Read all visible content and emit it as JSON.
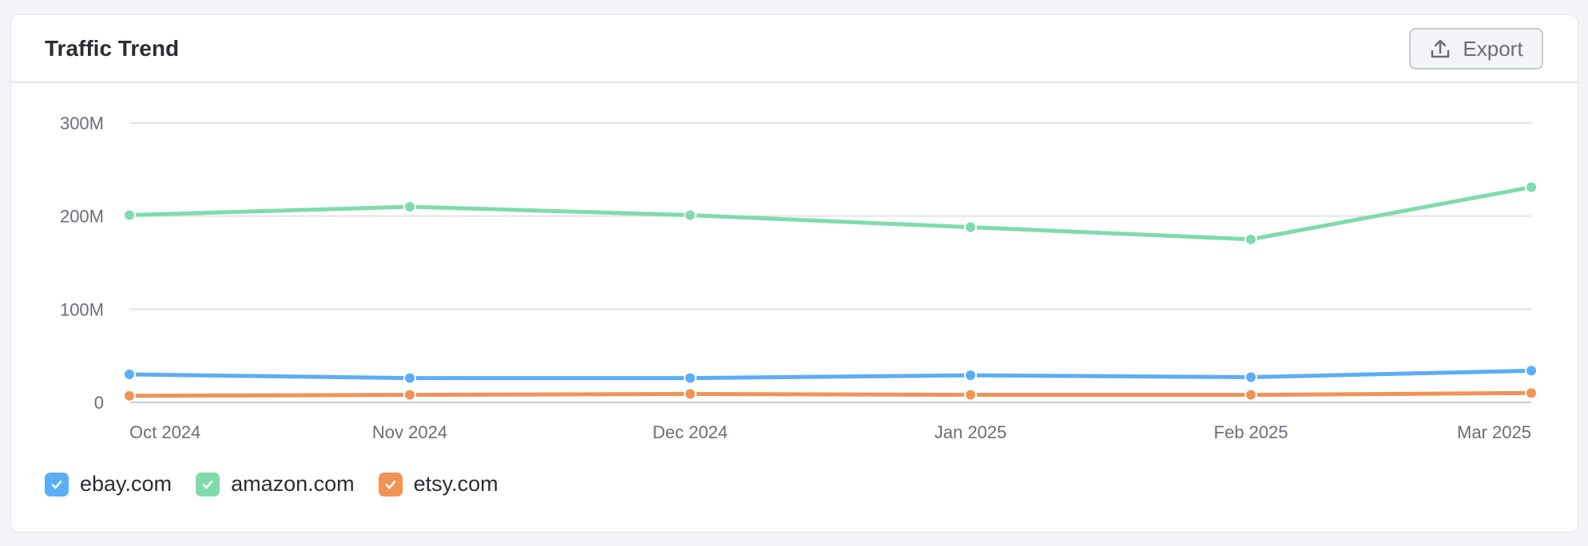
{
  "header": {
    "title": "Traffic Trend",
    "export_label": "Export",
    "export_icon": "upload-icon"
  },
  "chart_data": {
    "type": "line",
    "categories": [
      "Oct 2024",
      "Nov 2024",
      "Dec 2024",
      "Jan 2025",
      "Feb 2025",
      "Mar 2025"
    ],
    "y_ticks": [
      "0",
      "100M",
      "200M",
      "300M"
    ],
    "ylim": [
      0,
      300000000
    ],
    "grid": true,
    "legend_position": "bottom-left",
    "series": [
      {
        "name": "ebay.com",
        "color": "#5aaef5",
        "values": [
          30000000,
          26000000,
          26000000,
          29000000,
          27000000,
          34000000
        ]
      },
      {
        "name": "amazon.com",
        "color": "#7fdbac",
        "values": [
          201000000,
          210000000,
          201000000,
          188000000,
          175000000,
          231000000
        ]
      },
      {
        "name": "etsy.com",
        "color": "#f09355",
        "values": [
          7000000,
          8000000,
          9000000,
          8000000,
          8000000,
          10000000
        ]
      }
    ]
  }
}
